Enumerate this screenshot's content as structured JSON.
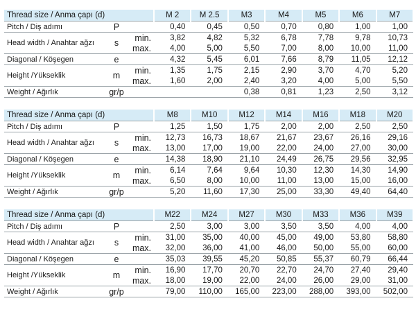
{
  "tables": [
    {
      "header": {
        "label": "Thread size / Anma çapı (d)",
        "sizes": [
          "M 2",
          "M 2.5",
          "M3",
          "M4",
          "M5",
          "M6",
          "M7"
        ]
      },
      "rows": [
        {
          "label": "Pitch / Diş adımı",
          "symbol": "P",
          "lines": [
            {
              "values": [
                "0,40",
                "0,45",
                "0,50",
                "0,70",
                "0,80",
                "1,00",
                "1,00"
              ]
            }
          ]
        },
        {
          "label": "Head width / Anahtar ağzı",
          "symbol": "s",
          "lines": [
            {
              "sub": "min.",
              "values": [
                "3,82",
                "4,82",
                "5,32",
                "6,78",
                "7,78",
                "9,78",
                "10,73"
              ]
            },
            {
              "sub": "max.",
              "values": [
                "4,00",
                "5,00",
                "5,50",
                "7,00",
                "8,00",
                "10,00",
                "11,00"
              ]
            }
          ]
        },
        {
          "label": "Diagonal / Köşegen",
          "symbol": "e",
          "lines": [
            {
              "values": [
                "4,32",
                "5,45",
                "6,01",
                "7,66",
                "8,79",
                "11,05",
                "12,12"
              ]
            }
          ]
        },
        {
          "label": "Height /Yükseklik",
          "symbol": "m",
          "lines": [
            {
              "sub": "min.",
              "values": [
                "1,35",
                "1,75",
                "2,15",
                "2,90",
                "3,70",
                "4,70",
                "5,20"
              ]
            },
            {
              "sub": "max.",
              "values": [
                "1,60",
                "2,00",
                "2,40",
                "3,20",
                "4,00",
                "5,00",
                "5,50"
              ]
            }
          ]
        },
        {
          "label": "Weight / Ağırlık",
          "symbol": "gr/p",
          "lines": [
            {
              "values": [
                null,
                null,
                "0,38",
                "0,81",
                "1,23",
                "2,50",
                "3,12"
              ]
            }
          ]
        }
      ]
    },
    {
      "header": {
        "label": "Thread size / Anma çapı (d)",
        "sizes": [
          "M8",
          "M10",
          "M12",
          "M14",
          "M16",
          "M18",
          "M20"
        ]
      },
      "rows": [
        {
          "label": "Pitch / Diş adımı",
          "symbol": "P",
          "lines": [
            {
              "values": [
                "1,25",
                "1,50",
                "1,75",
                "2,00",
                "2,00",
                "2,50",
                "2,50"
              ]
            }
          ]
        },
        {
          "label": "Head width / Anahtar ağzı",
          "symbol": "s",
          "lines": [
            {
              "sub": "min.",
              "values": [
                "12,73",
                "16,73",
                "18,67",
                "21,67",
                "23,67",
                "26,16",
                "29,16"
              ]
            },
            {
              "sub": "max.",
              "values": [
                "13,00",
                "17,00",
                "19,00",
                "22,00",
                "24,00",
                "27,00",
                "30,00"
              ]
            }
          ]
        },
        {
          "label": "Diagonal / Köşegen",
          "symbol": "e",
          "lines": [
            {
              "values": [
                "14,38",
                "18,90",
                "21,10",
                "24,49",
                "26,75",
                "29,56",
                "32,95"
              ]
            }
          ]
        },
        {
          "label": "Height /Yükseklik",
          "symbol": "m",
          "lines": [
            {
              "sub": "min.",
              "values": [
                "6,14",
                "7,64",
                "9,64",
                "10,30",
                "12,30",
                "14,30",
                "14,90"
              ]
            },
            {
              "sub": "max.",
              "values": [
                "6,50",
                "8,00",
                "10,00",
                "11,00",
                "13,00",
                "15,00",
                "16,00"
              ]
            }
          ]
        },
        {
          "label": "Weight / Ağırlık",
          "symbol": "gr/p",
          "lines": [
            {
              "values": [
                "5,20",
                "11,60",
                "17,30",
                "25,00",
                "33,30",
                "49,40",
                "64,40"
              ]
            }
          ]
        }
      ]
    },
    {
      "header": {
        "label": "Thread size / Anma çapı (d)",
        "sizes": [
          "M22",
          "M24",
          "M27",
          "M30",
          "M33",
          "M36",
          "M39"
        ]
      },
      "rows": [
        {
          "label": "Pitch / Diş adımı",
          "symbol": "P",
          "lines": [
            {
              "values": [
                "2,50",
                "3,00",
                "3,00",
                "3,50",
                "3,50",
                "4,00",
                "4,00"
              ]
            }
          ]
        },
        {
          "label": "Head width / Anahtar ağzı",
          "symbol": "s",
          "lines": [
            {
              "sub": "min.",
              "values": [
                "31,00",
                "35,00",
                "40,00",
                "45,00",
                "49,00",
                "53,80",
                "58,80"
              ]
            },
            {
              "sub": "max.",
              "values": [
                "32,00",
                "36,00",
                "41,00",
                "46,00",
                "50,00",
                "55,00",
                "60,00"
              ]
            }
          ]
        },
        {
          "label": "Diagonal / Köşegen",
          "symbol": "e",
          "lines": [
            {
              "values": [
                "35,03",
                "39,55",
                "45,20",
                "50,85",
                "55,37",
                "60,79",
                "66,44"
              ]
            }
          ]
        },
        {
          "label": "Height /Yükseklik",
          "symbol": "m",
          "lines": [
            {
              "sub": "min.",
              "values": [
                "16,90",
                "17,70",
                "20,70",
                "22,70",
                "24,70",
                "27,40",
                "29,40"
              ]
            },
            {
              "sub": "max.",
              "values": [
                "18,00",
                "19,00",
                "22,00",
                "24,00",
                "26,00",
                "29,00",
                "31,00"
              ]
            }
          ]
        },
        {
          "label": "Weight / Ağırlık",
          "symbol": "gr/p",
          "lines": [
            {
              "values": [
                "79,00",
                "110,00",
                "165,00",
                "223,00",
                "288,00",
                "393,00",
                "502,00"
              ]
            }
          ]
        }
      ]
    }
  ]
}
